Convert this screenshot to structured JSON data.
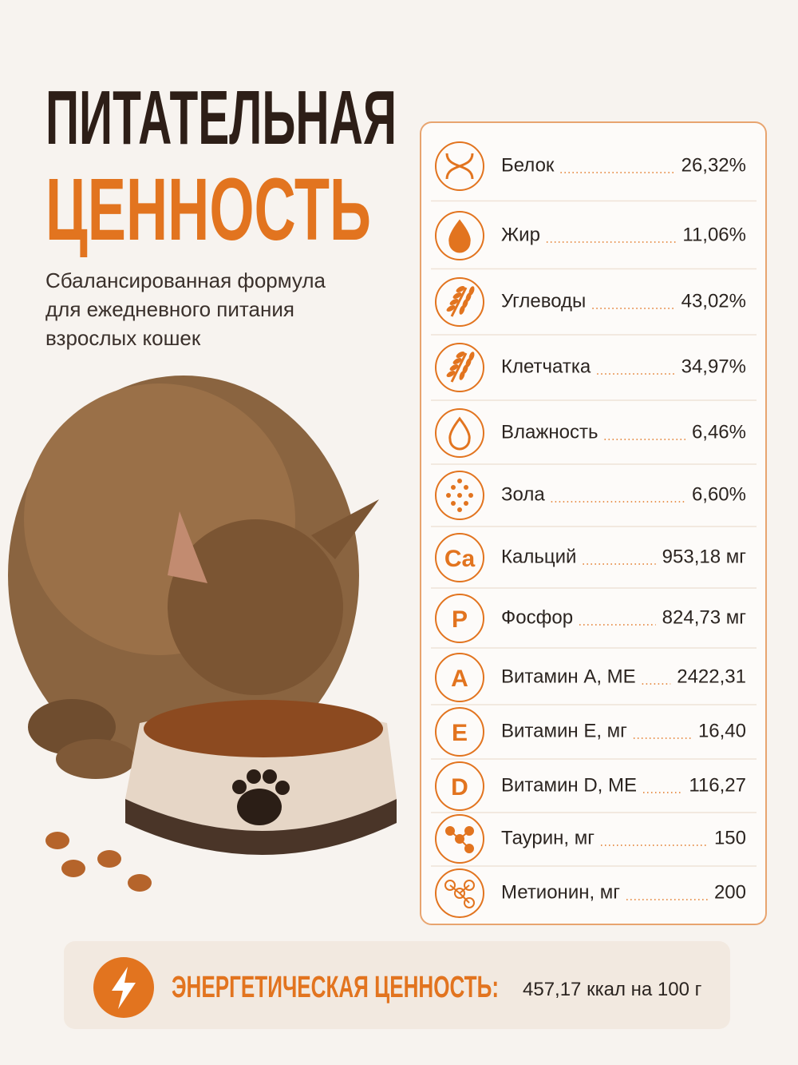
{
  "header": {
    "title_line1": "ПИТАТЕЛЬНАЯ",
    "title_line2": "ЦЕННОСТЬ",
    "subtitle": [
      "Сбалансированная формула",
      "для ежедневного питания",
      "взрослых кошек"
    ]
  },
  "nutrients": [
    {
      "name": "Белок",
      "value": "26,32%"
    },
    {
      "name": "Жир",
      "value": "11,06%"
    },
    {
      "name": "Углеводы",
      "value": "43,02%"
    },
    {
      "name": "Клетчатка",
      "value": "34,97%"
    },
    {
      "name": "Влажность",
      "value": "6,46%"
    },
    {
      "name": "Зола",
      "value": "6,60%"
    },
    {
      "icon": "Ca",
      "name": "Кальций",
      "value": "953,18 мг"
    },
    {
      "icon": "P",
      "name": "Фосфор",
      "value": "824,73 мг"
    },
    {
      "icon": "A",
      "name": "Витамин А, МЕ",
      "value": "2422,31"
    },
    {
      "icon": "E",
      "name": "Витамин Е, мг",
      "value": "16,40"
    },
    {
      "icon": "D",
      "name": "Витамин D, МЕ",
      "value": "116,27"
    },
    {
      "name": "Таурин, мг",
      "value": "150"
    },
    {
      "name": "Метионин, мг",
      "value": "200"
    }
  ],
  "energy": {
    "label": "ЭНЕРГЕТИЧЕСКАЯ ЦЕННОСТЬ:",
    "value": "457,17 ккал на 100 г"
  }
}
